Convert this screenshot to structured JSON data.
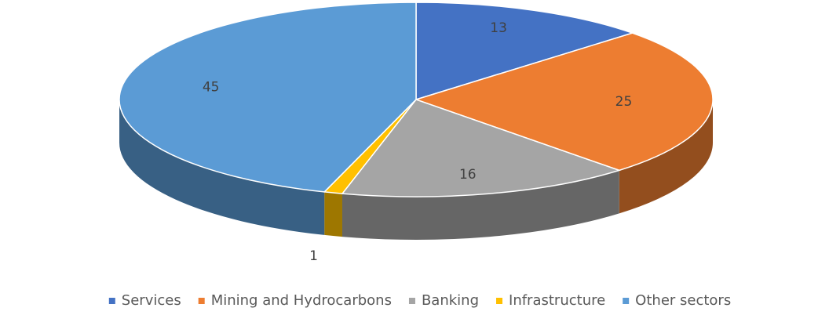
{
  "chart_data": {
    "type": "pie3d",
    "categories": [
      "Services",
      "Mining and Hydrocarbons",
      "Banking",
      "Infrastructure",
      "Other sectors"
    ],
    "values": [
      13,
      25,
      16,
      1,
      45
    ],
    "colors": [
      "#4472c4",
      "#ed7d31",
      "#a5a5a5",
      "#ffc000",
      "#5b9bd5"
    ],
    "legend": "bottom"
  }
}
